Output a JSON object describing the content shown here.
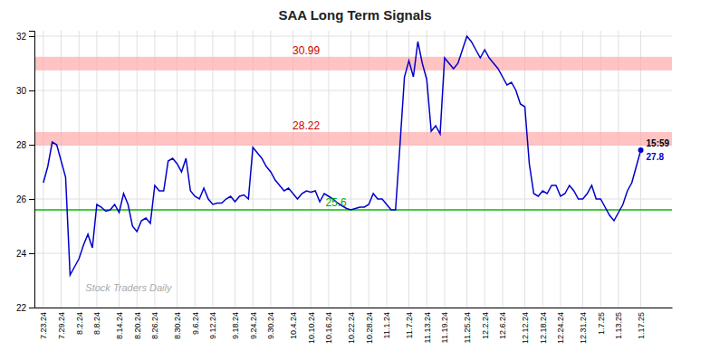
{
  "chart_data": {
    "type": "line",
    "title": "SAA Long Term Signals",
    "color": "#0000cc",
    "grid": true,
    "ylim": [
      22,
      32.2
    ],
    "yticks": [
      22,
      24,
      26,
      28,
      30,
      32
    ],
    "categories": [
      "7.23.24",
      null,
      null,
      null,
      "7.29.24",
      null,
      null,
      null,
      "8.2.24",
      null,
      null,
      null,
      "8.8.24",
      null,
      null,
      null,
      null,
      "8.14.24",
      null,
      null,
      null,
      "8.20.24",
      null,
      null,
      null,
      "8.26.24",
      null,
      null,
      null,
      null,
      "8.30.24",
      null,
      null,
      null,
      "9.6.24",
      null,
      null,
      null,
      "9.12.24",
      null,
      null,
      null,
      null,
      "9.18.24",
      null,
      null,
      null,
      "9.24.24",
      null,
      null,
      null,
      "9.30.24",
      null,
      null,
      null,
      null,
      "10.4.24",
      null,
      null,
      null,
      "10.10.24",
      null,
      null,
      null,
      "10.16.24",
      null,
      null,
      null,
      null,
      "10.22.24",
      null,
      null,
      null,
      "10.28.24",
      null,
      null,
      null,
      "11.1.24",
      null,
      null,
      null,
      null,
      "11.7.24",
      null,
      null,
      null,
      "11.13.24",
      null,
      null,
      null,
      "11.19.24",
      null,
      null,
      null,
      null,
      "11.25.24",
      null,
      null,
      null,
      "12.2.24",
      null,
      null,
      null,
      "12.6.24",
      null,
      null,
      null,
      null,
      "12.12.24",
      null,
      null,
      null,
      "12.18.24",
      null,
      null,
      null,
      "12.24.24",
      null,
      null,
      null,
      null,
      "12.31.24",
      null,
      null,
      null,
      "1.7.25",
      null,
      null,
      null,
      "1.13.25",
      null,
      null,
      null,
      null,
      "1.17.25"
    ],
    "values": [
      26.6,
      27.2,
      28.1,
      28.0,
      27.4,
      26.8,
      23.2,
      23.5,
      23.8,
      24.3,
      24.7,
      24.2,
      25.8,
      25.7,
      25.55,
      25.6,
      25.8,
      25.5,
      26.2,
      25.8,
      25.0,
      24.8,
      25.2,
      25.3,
      25.1,
      26.5,
      26.3,
      26.3,
      27.4,
      27.5,
      27.3,
      27.0,
      27.5,
      26.3,
      26.1,
      26.0,
      26.4,
      26.0,
      25.8,
      25.85,
      25.85,
      26.0,
      26.1,
      25.9,
      26.1,
      26.15,
      26.0,
      27.9,
      27.7,
      27.5,
      27.2,
      27.0,
      26.7,
      26.5,
      26.3,
      26.4,
      26.2,
      26.0,
      26.2,
      26.3,
      26.25,
      26.3,
      25.9,
      26.2,
      26.1,
      26.0,
      25.85,
      25.75,
      25.65,
      25.6,
      25.65,
      25.7,
      25.7,
      25.8,
      26.2,
      26.0,
      26.0,
      25.8,
      25.6,
      25.6,
      28.0,
      30.5,
      31.1,
      30.5,
      31.8,
      31.0,
      30.4,
      28.5,
      28.7,
      28.4,
      31.2,
      31.0,
      30.8,
      31.0,
      31.5,
      32.0,
      31.8,
      31.5,
      31.2,
      31.5,
      31.2,
      31.0,
      30.8,
      30.5,
      30.2,
      30.3,
      30.0,
      29.5,
      29.4,
      27.3,
      26.2,
      26.1,
      26.3,
      26.2,
      26.5,
      26.5,
      26.1,
      26.2,
      26.5,
      26.3,
      26.0,
      26.0,
      26.2,
      26.5,
      26.0,
      26.0,
      25.7,
      25.4,
      25.2,
      25.5,
      25.8,
      26.3,
      26.6,
      27.2,
      27.8
    ],
    "bands": [
      {
        "center": 30.99,
        "half_width": 0.25,
        "color": "#ffaaaa",
        "label": "30.99",
        "label_color": "#cc0000"
      },
      {
        "center": 28.22,
        "half_width": 0.25,
        "color": "#ffaaaa",
        "label": "28.22",
        "label_color": "#cc0000"
      }
    ],
    "hline": {
      "value": 25.6,
      "color": "#00bb00",
      "label": "25.6",
      "label_color": "#00aa00"
    },
    "end_label": {
      "time": "15:59",
      "value": 27.8,
      "color": "#0000cc"
    },
    "watermark": "Stock Traders Daily"
  }
}
